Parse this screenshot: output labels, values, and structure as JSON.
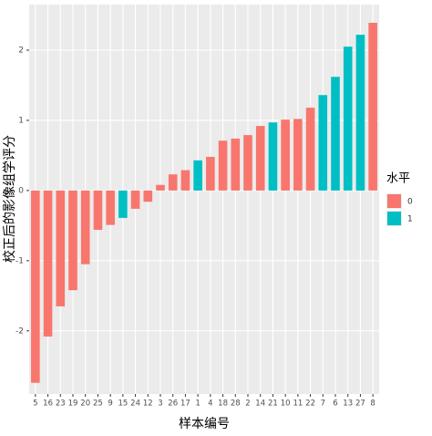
{
  "chart_data": {
    "type": "bar",
    "xlabel": "样本编号",
    "ylabel": "校正后的影像组学评分",
    "categories": [
      "5",
      "16",
      "23",
      "19",
      "20",
      "25",
      "9",
      "15",
      "24",
      "12",
      "3",
      "26",
      "17",
      "1",
      "4",
      "18",
      "28",
      "2",
      "14",
      "21",
      "10",
      "11",
      "22",
      "7",
      "6",
      "13",
      "27",
      "8"
    ],
    "values": [
      -2.74,
      -2.08,
      -1.65,
      -1.42,
      -1.05,
      -0.56,
      -0.49,
      -0.39,
      -0.26,
      -0.16,
      0.08,
      0.23,
      0.29,
      0.43,
      0.48,
      0.71,
      0.74,
      0.79,
      0.92,
      0.97,
      1.01,
      1.02,
      1.18,
      1.36,
      1.62,
      2.05,
      2.22,
      2.39
    ],
    "groups": [
      0,
      0,
      0,
      0,
      0,
      0,
      0,
      1,
      0,
      0,
      0,
      0,
      0,
      1,
      0,
      0,
      0,
      0,
      0,
      1,
      0,
      0,
      0,
      1,
      1,
      1,
      1,
      0
    ],
    "legend": {
      "title": "水平",
      "entries": [
        {
          "label": "0",
          "color": "#F8766D"
        },
        {
          "label": "1",
          "color": "#00BFC4"
        }
      ]
    },
    "ylim": [
      -2.9,
      2.65
    ],
    "yticks": [
      -2,
      -1,
      0,
      1,
      2
    ],
    "grid": true
  }
}
